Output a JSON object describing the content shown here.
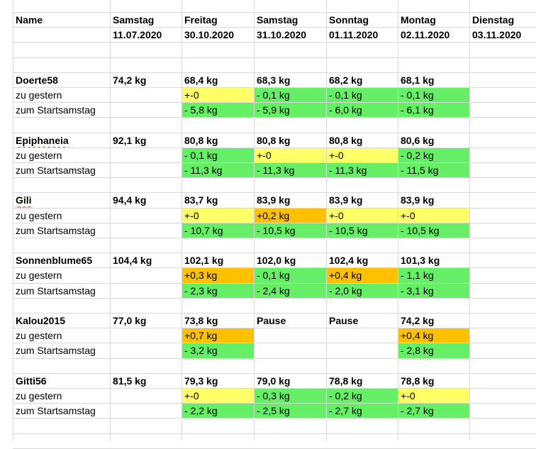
{
  "colors": {
    "green": "#66ee66",
    "yellow": "#ffff66",
    "orange": "#ffc000",
    "grid": "#d8d8d8"
  },
  "header": {
    "name_label": "Name",
    "columns": [
      {
        "day": "Samstag",
        "date": "11.07.2020"
      },
      {
        "day": "Freitag",
        "date": "30.10.2020"
      },
      {
        "day": "Samstag",
        "date": "31.10.2020"
      },
      {
        "day": "Sonntag",
        "date": "01.11.2020"
      },
      {
        "day": "Montag",
        "date": "02.11.2020"
      },
      {
        "day": "Dienstag",
        "date": "03.11.2020"
      }
    ]
  },
  "row_labels": {
    "yesterday": "zu gestern",
    "start": "zum Startsamstag"
  },
  "people": [
    {
      "name": "Doerte58",
      "start": "74,2 kg",
      "weights": [
        "68,4 kg",
        "68,3 kg",
        "68,2 kg",
        "68,1 kg",
        ""
      ],
      "yesterday": [
        {
          "t": "+-0",
          "c": "yellow"
        },
        {
          "t": "- 0,1 kg",
          "c": "green"
        },
        {
          "t": "- 0,1 kg",
          "c": "green"
        },
        {
          "t": "- 0,1 kg",
          "c": "green"
        },
        {
          "t": "",
          "c": ""
        }
      ],
      "total": [
        {
          "t": "- 5,8 kg",
          "c": "green"
        },
        {
          "t": "- 5,9 kg",
          "c": "green"
        },
        {
          "t": "- 6,0 kg",
          "c": "green"
        },
        {
          "t": "- 6,1 kg",
          "c": "green"
        },
        {
          "t": "",
          "c": ""
        }
      ]
    },
    {
      "name": "Epiphaneia",
      "start": "92,1 kg",
      "weights": [
        "80,8 kg",
        "80,8 kg",
        "80,8 kg",
        "80,6 kg",
        ""
      ],
      "yesterday": [
        {
          "t": "-  0,1 kg",
          "c": "green"
        },
        {
          "t": "+-0",
          "c": "yellow"
        },
        {
          "t": "+-0",
          "c": "yellow"
        },
        {
          "t": "-  0,2 kg",
          "c": "green"
        },
        {
          "t": "",
          "c": ""
        }
      ],
      "total": [
        {
          "t": "- 11,3 kg",
          "c": "green"
        },
        {
          "t": "- 11,3 kg",
          "c": "green"
        },
        {
          "t": "- 11,3 kg",
          "c": "green"
        },
        {
          "t": "- 11,5 kg",
          "c": "green"
        },
        {
          "t": "",
          "c": ""
        }
      ]
    },
    {
      "name": "Gili",
      "start": "94,4 kg",
      "weights": [
        "83,7 kg",
        "83,9 kg",
        "83,9 kg",
        "83,9 kg",
        ""
      ],
      "yesterday": [
        {
          "t": "+-0",
          "c": "yellow"
        },
        {
          "t": "+0,2 kg",
          "c": "orange"
        },
        {
          "t": "+-0",
          "c": "yellow"
        },
        {
          "t": "+-0",
          "c": "yellow"
        },
        {
          "t": "",
          "c": ""
        }
      ],
      "total": [
        {
          "t": "- 10,7 kg",
          "c": "green"
        },
        {
          "t": "- 10,5 kg",
          "c": "green"
        },
        {
          "t": "- 10,5 kg",
          "c": "green"
        },
        {
          "t": "- 10,5 kg",
          "c": "green"
        },
        {
          "t": "",
          "c": ""
        }
      ]
    },
    {
      "name": "Sonnenblume65",
      "start": "104,4 kg",
      "weights": [
        "102,1 kg",
        "102,0 kg",
        "102,4 kg",
        "101,3 kg",
        ""
      ],
      "yesterday": [
        {
          "t": "+0,3 kg",
          "c": "orange"
        },
        {
          "t": "- 0,1 kg",
          "c": "green"
        },
        {
          "t": "+0,4 kg",
          "c": "orange"
        },
        {
          "t": "- 1,1 kg",
          "c": "green"
        },
        {
          "t": "",
          "c": ""
        }
      ],
      "total": [
        {
          "t": "- 2,3 kg",
          "c": "green"
        },
        {
          "t": "- 2,4 kg",
          "c": "green"
        },
        {
          "t": "- 2,0 kg",
          "c": "green"
        },
        {
          "t": "- 3,1 kg",
          "c": "green"
        },
        {
          "t": "",
          "c": ""
        }
      ]
    },
    {
      "name": "Kalou2015",
      "start": "77,0 kg",
      "weights": [
        "73,8 kg",
        "Pause",
        "Pause",
        "74,2 kg",
        ""
      ],
      "yesterday": [
        {
          "t": "+0,7 kg",
          "c": "orange"
        },
        {
          "t": "",
          "c": ""
        },
        {
          "t": "",
          "c": ""
        },
        {
          "t": "+0,4 kg",
          "c": "orange"
        },
        {
          "t": "",
          "c": ""
        }
      ],
      "total": [
        {
          "t": "- 3,2 kg",
          "c": "green"
        },
        {
          "t": "",
          "c": ""
        },
        {
          "t": "",
          "c": ""
        },
        {
          "t": "- 2,8 kg",
          "c": "green"
        },
        {
          "t": "",
          "c": ""
        }
      ]
    },
    {
      "name": "Gitti56",
      "start": "81,5 kg",
      "weights": [
        "79,3 kg",
        "79,0 kg",
        "78,8 kg",
        "78,8 kg",
        ""
      ],
      "yesterday": [
        {
          "t": "+-0",
          "c": "yellow"
        },
        {
          "t": "- 0,3 kg",
          "c": "green"
        },
        {
          "t": "- 0,2 kg",
          "c": "green"
        },
        {
          "t": "+-0",
          "c": "yellow"
        },
        {
          "t": "",
          "c": ""
        }
      ],
      "total": [
        {
          "t": "- 2,2 kg",
          "c": "green"
        },
        {
          "t": "- 2,5 kg",
          "c": "green"
        },
        {
          "t": "- 2,7 kg",
          "c": "green"
        },
        {
          "t": "- 2,7 kg",
          "c": "green"
        },
        {
          "t": "",
          "c": ""
        }
      ]
    }
  ]
}
